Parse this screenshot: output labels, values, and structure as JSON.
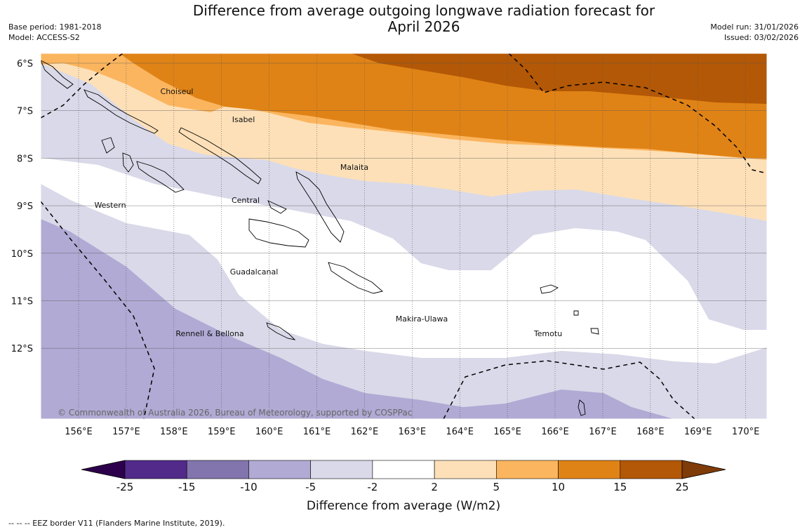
{
  "header": {
    "title_line1": "Difference from average outgoing longwave radiation forecast for",
    "title_line2": "April 2026",
    "base_period": "Base period: 1981-2018",
    "model": "Model: ACCESS-S2",
    "model_run": "Model run: 31/01/2026",
    "issued": "Issued: 03/02/2026"
  },
  "map": {
    "lat_labels": [
      "6°S",
      "7°S",
      "8°S",
      "9°S",
      "10°S",
      "11°S",
      "12°S"
    ],
    "lon_labels": [
      "156°E",
      "157°E",
      "158°E",
      "159°E",
      "160°E",
      "161°E",
      "162°E",
      "163°E",
      "164°E",
      "165°E",
      "166°E",
      "167°E",
      "168°E",
      "169°E",
      "170°E"
    ],
    "regions": [
      "Choiseul",
      "Isabel",
      "Malaita",
      "Western",
      "Central",
      "Guadalcanal",
      "Makira-Ulawa",
      "Temotu",
      "Rennell & Bellona"
    ],
    "copyright": "© Commonwealth of Australia 2026, Bureau of Meteorology, supported by COSPPac"
  },
  "colorbar": {
    "ticks": [
      "-25",
      "-15",
      "-10",
      "-5",
      "-2",
      "2",
      "5",
      "10",
      "15",
      "25"
    ],
    "colors": [
      "#522a8a",
      "#8274ad",
      "#b0aad4",
      "#d9d9e9",
      "#ffffff",
      "#fde0b8",
      "#fbb55e",
      "#e08316",
      "#b35806"
    ],
    "under_color": "#2d004b",
    "over_color": "#7f3b08",
    "label": "Difference from average (W/m2)"
  },
  "footer": {
    "legend": "--  --  -- EEZ border V11 (Flanders Marine Institute, 2019)."
  }
}
